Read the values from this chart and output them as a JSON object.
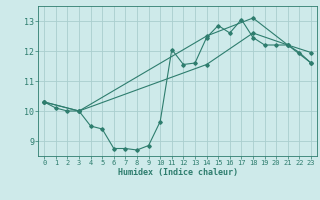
{
  "xlabel": "Humidex (Indice chaleur)",
  "bg_color": "#ceeaea",
  "grid_color": "#aacece",
  "line_color": "#2e7d6e",
  "xlim": [
    -0.5,
    23.5
  ],
  "ylim": [
    8.5,
    13.5
  ],
  "yticks": [
    9,
    10,
    11,
    12,
    13
  ],
  "xticks": [
    0,
    1,
    2,
    3,
    4,
    5,
    6,
    7,
    8,
    9,
    10,
    11,
    12,
    13,
    14,
    15,
    16,
    17,
    18,
    19,
    20,
    21,
    22,
    23
  ],
  "series1_x": [
    0,
    1,
    2,
    3,
    4,
    5,
    6,
    7,
    8,
    9,
    10,
    11,
    12,
    13,
    14,
    15,
    16,
    17,
    18,
    19,
    20,
    21,
    22,
    23
  ],
  "series1_y": [
    10.3,
    10.1,
    10.0,
    10.0,
    9.5,
    9.4,
    8.75,
    8.75,
    8.7,
    8.85,
    9.65,
    12.05,
    11.55,
    11.6,
    12.45,
    12.85,
    12.6,
    13.05,
    12.45,
    12.2,
    12.2,
    12.2,
    11.95,
    11.6
  ],
  "series2_x": [
    0,
    3,
    14,
    18,
    21,
    23
  ],
  "series2_y": [
    10.3,
    10.0,
    12.5,
    13.1,
    12.2,
    11.95
  ],
  "series3_x": [
    0,
    3,
    14,
    18,
    21,
    23
  ],
  "series3_y": [
    10.3,
    10.0,
    11.55,
    12.6,
    12.2,
    11.6
  ]
}
